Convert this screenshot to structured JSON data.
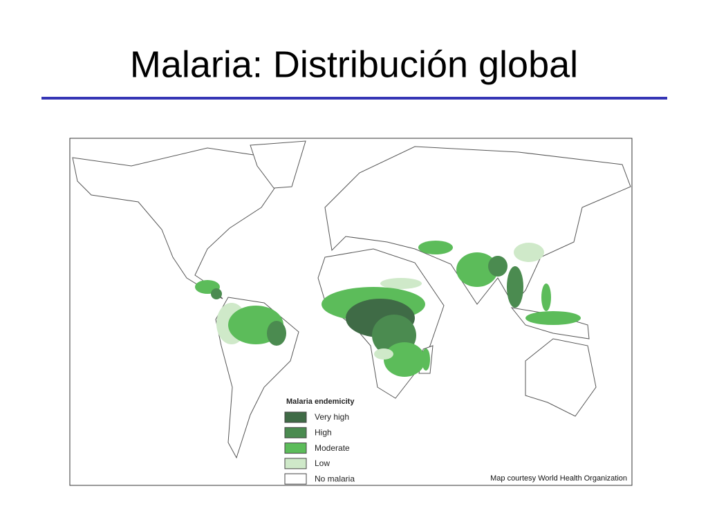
{
  "title": "Malaria: Distribución global",
  "map": {
    "legend": {
      "title": "Malaria endemicity",
      "items": [
        {
          "label": "Very high",
          "color": "#3f6b46"
        },
        {
          "label": "High",
          "color": "#4b8b50"
        },
        {
          "label": "Moderate",
          "color": "#5cbc5a"
        },
        {
          "label": "Low",
          "color": "#cfe9c9"
        },
        {
          "label": "No malaria",
          "color": "#ffffff"
        }
      ]
    },
    "credit": "Map courtesy World Health Organization"
  }
}
